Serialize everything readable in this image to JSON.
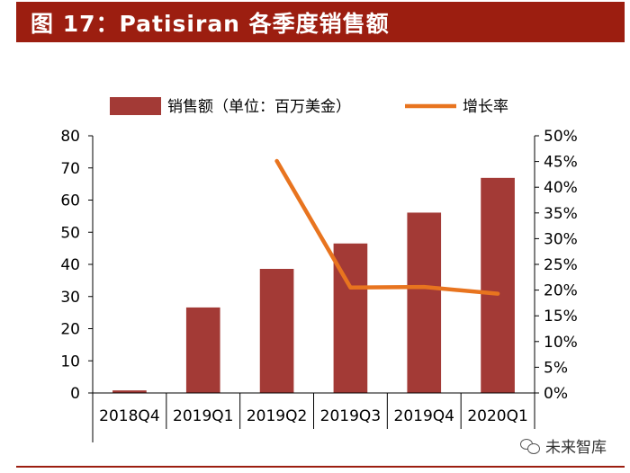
{
  "header": {
    "title": "图 17：Patisiran 各季度销售额"
  },
  "watermark": {
    "text": "未来智库",
    "icon": "wechat-icon"
  },
  "colors": {
    "title_bg": "#9c1e10",
    "bar": "#a33a36",
    "line": "#e8741f",
    "axis": "#000000"
  },
  "chart_data": {
    "type": "bar",
    "categories": [
      "2018Q4",
      "2019Q1",
      "2019Q2",
      "2019Q3",
      "2019Q4",
      "2020Q1"
    ],
    "series": [
      {
        "name": "销售额（单位：百万美金）",
        "type": "bar",
        "axis": "left",
        "values": [
          0.8,
          26.6,
          38.6,
          46.5,
          56.1,
          66.9
        ]
      },
      {
        "name": "增长率",
        "type": "line",
        "axis": "right",
        "values": [
          null,
          null,
          45.1,
          20.5,
          20.6,
          19.3
        ]
      }
    ],
    "y_left": {
      "ylim": [
        0,
        80
      ],
      "ticks": [
        "0",
        "10",
        "20",
        "30",
        "40",
        "50",
        "60",
        "70",
        "80"
      ]
    },
    "y_right": {
      "ylim": [
        0,
        50
      ],
      "ticks": [
        "0%",
        "5%",
        "10%",
        "15%",
        "20%",
        "25%",
        "30%",
        "35%",
        "40%",
        "45%",
        "50%"
      ]
    },
    "legend": "top",
    "grid": false
  }
}
